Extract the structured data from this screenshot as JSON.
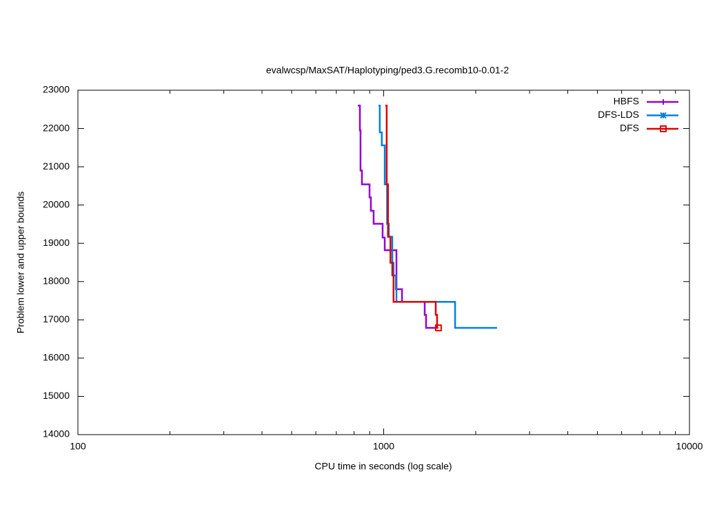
{
  "chart_data": {
    "type": "line",
    "title": "evalwcsp/MaxSAT/Haplotyping/ped3.G.recomb10-0.01-2",
    "x_label": "CPU time in seconds (log scale)",
    "y_label": "Problem lower and upper bounds",
    "x_log": true,
    "step": true,
    "legend": "top-right",
    "xlim": [
      100,
      10000
    ],
    "xticks": [
      100,
      1000,
      10000
    ],
    "ylim": [
      14000,
      23000
    ],
    "yticks": [
      14000,
      15000,
      16000,
      17000,
      18000,
      19000,
      20000,
      21000,
      22000,
      23000
    ],
    "series": [
      {
        "name": "HBFS",
        "color": "#9400d3",
        "marker": "plus",
        "x": [
          823,
          836,
          840,
          849,
          899,
          908,
          927,
          992,
          1008,
          1067,
          1101,
          1148,
          1362,
          1376,
          1472
        ],
        "values": [
          22600,
          21950,
          20900,
          20540,
          20200,
          19850,
          19510,
          19150,
          18820,
          18820,
          17800,
          17470,
          17130,
          16790,
          16790
        ]
      },
      {
        "name": "DFS-LDS",
        "color": "#0080e0",
        "marker": "star",
        "x": [
          962,
          971,
          986,
          1008,
          1026,
          1040,
          1067,
          1077,
          1096,
          1101,
          1712,
          2349
        ],
        "values": [
          22600,
          21900,
          21560,
          20540,
          19510,
          19170,
          18490,
          18160,
          17800,
          17470,
          16790,
          16790
        ]
      },
      {
        "name": "DFS",
        "color": "#e00000",
        "marker": "square",
        "x": [
          1012,
          1023,
          1033,
          1052,
          1067,
          1077,
          1480,
          1495,
          1510
        ],
        "values": [
          22600,
          20540,
          19170,
          18490,
          18160,
          17470,
          17130,
          16790,
          16790
        ]
      }
    ]
  }
}
